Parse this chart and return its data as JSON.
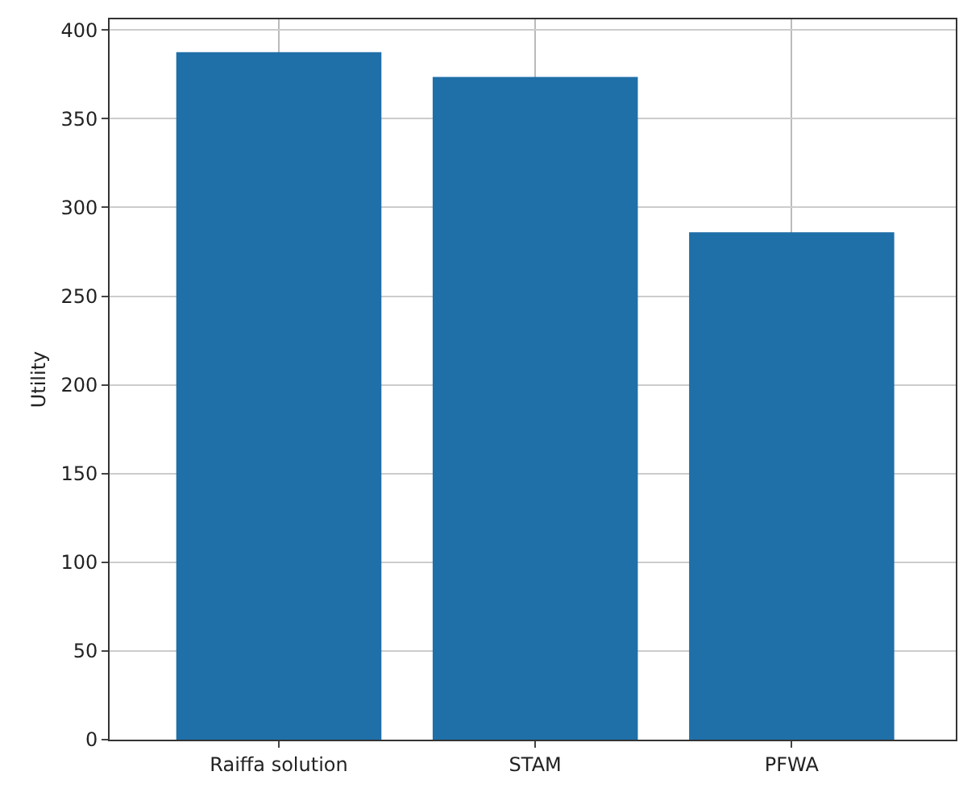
{
  "chart_data": {
    "type": "bar",
    "ylabel": "Utility",
    "categories": [
      "Raiffa solution",
      "STAM",
      "PFWA"
    ],
    "values": [
      387.5,
      373.5,
      286
    ],
    "color": "#1f6fa8",
    "ylim": [
      0,
      406
    ],
    "yticks": [
      0,
      50,
      100,
      150,
      200,
      250,
      300,
      350,
      400
    ],
    "grid": true
  }
}
